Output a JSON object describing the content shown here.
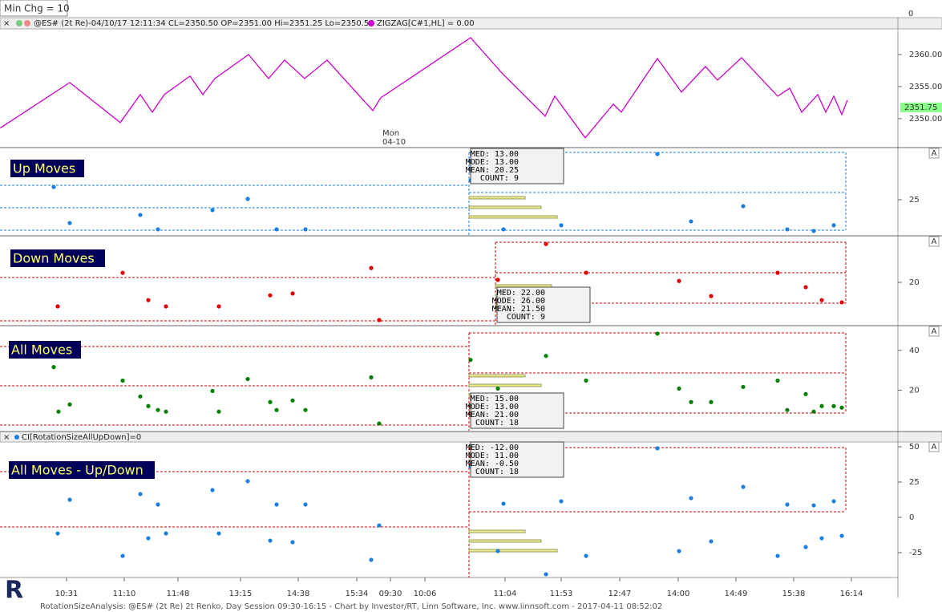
{
  "toolbar": {
    "min_chg": "Min Chg = 10",
    "top_tick": 0
  },
  "price_pane": {
    "header": "@ES# (2t Re)-04/10/17 12:11:34 CL=2350.50 OP=2351.00 Hi=2351.25 Lo=2350.50",
    "indicator": "ZIGZAG[C#1,HL] = 0.00",
    "day_label": "Mon",
    "date_label": "04-10",
    "last_price": 2351.75,
    "ylim": [
      2345.6,
      2363.75
    ],
    "yticks": [
      {
        "value": 2350,
        "label": "2350.00"
      },
      {
        "value": 2355,
        "label": "2355.00"
      },
      {
        "value": 2360,
        "label": "2360.00"
      }
    ],
    "zigzag": {
      "color": "#cc00cc",
      "x": [
        0,
        8.7,
        15,
        17.5,
        19,
        20.5,
        23.7,
        25.3,
        26.8,
        31,
        33.5,
        35.5,
        38,
        40.8,
        46.5,
        47.5,
        58.7,
        62.5,
        68,
        69.2,
        73,
        76.5,
        77.5,
        82,
        85,
        88,
        89.5,
        92.5,
        97,
        98.5,
        100,
        102,
        103,
        104,
        105,
        105.7
      ],
      "y": [
        2348.5,
        2355.63,
        2349.38,
        2353.75,
        2351,
        2353.75,
        2356.63,
        2353.75,
        2356.25,
        2360,
        2356.25,
        2359.13,
        2356.25,
        2359.13,
        2351.25,
        2353.25,
        2362.63,
        2357.25,
        2350.38,
        2353.5,
        2347,
        2352.25,
        2351,
        2359.38,
        2354.13,
        2358.13,
        2356,
        2359.5,
        2353.5,
        2354.75,
        2351,
        2353.75,
        2351,
        2353.5,
        2350.63,
        2352.88
      ]
    }
  },
  "panes": [
    {
      "title": "Up Moves",
      "color": "#1a7fe0",
      "ylim": [
        7.6,
        50.3
      ],
      "yticks": [
        25
      ],
      "x": [
        6.7,
        8.7,
        17.5,
        19.7,
        26.5,
        30.9,
        34.5,
        38.1,
        58.7,
        62.8,
        70,
        82,
        86.2,
        92.7,
        98.2,
        101.5,
        104
      ],
      "y": [
        31.3,
        13.5,
        17.5,
        10.4,
        19.9,
        25.4,
        10.4,
        10.4,
        34.5,
        10.4,
        12.4,
        47.5,
        14.3,
        21.8,
        10.4,
        9.6,
        12.4
      ],
      "stats": [
        "MED: 13.00",
        "MODE: 13.00",
        "MEAN: 20.25",
        "COUNT: 9"
      ]
    },
    {
      "title": "Down Moves",
      "color": "#e00000",
      "ylim": [
        8.5,
        32.4
      ],
      "yticks": [
        20
      ],
      "x": [
        7.2,
        15.3,
        18.5,
        20.7,
        27.3,
        33.7,
        36.5,
        46.3,
        47.3,
        62.1,
        68.1,
        73.1,
        84.7,
        88.7,
        97,
        100.5,
        102.5,
        105
      ],
      "y": [
        13.5,
        22.6,
        15.2,
        13.5,
        13.5,
        16.5,
        17,
        23.9,
        9.8,
        20.7,
        30.4,
        22.6,
        20.4,
        16.3,
        22.6,
        18.7,
        15.2,
        14.6
      ],
      "stats": [
        "MED: 22.00",
        "MODE: 26.00",
        "MEAN: 21.50",
        "COUNT: 9"
      ]
    },
    {
      "title": "All Moves",
      "color": "#008000",
      "ylim": [
        -0.4,
        52
      ],
      "yticks": [
        40,
        20
      ],
      "x": [
        6.7,
        7.3,
        8.7,
        15.3,
        17.5,
        18.5,
        19.7,
        20.7,
        26.5,
        27.3,
        30.9,
        33.7,
        34.5,
        36.5,
        38.1,
        46.3,
        47.3,
        58.7,
        62.1,
        62.8,
        68.1,
        73.1,
        82,
        84.7,
        86.2,
        88.7,
        92.7,
        97,
        98.2,
        100.5,
        101.5,
        102.5,
        104,
        105
      ],
      "y": [
        31.6,
        9.2,
        12.8,
        24.8,
        16.8,
        12,
        10,
        9.2,
        19.6,
        9.2,
        25.6,
        14,
        10,
        14.8,
        10,
        26.4,
        3.2,
        35.2,
        20.8,
        10,
        37.2,
        24.8,
        48.4,
        20.8,
        14,
        14,
        21.6,
        24.8,
        10,
        18,
        9.2,
        12,
        12,
        11.2
      ],
      "stats": [
        "MED: 15.00",
        "MODE: 13.00",
        "MEAN: 21.00",
        "COUNT: 18"
      ]
    },
    {
      "title": "All Moves - Up/Down",
      "header": "CI[RotationSizeAllUpDown]=0",
      "color": "#1a7fe0",
      "ylim": [
        -42.6,
        53.4
      ],
      "yticks": [
        50,
        25,
        0,
        -25
      ],
      "x": [
        7.2,
        8.7,
        15.3,
        17.5,
        18.5,
        19.7,
        20.7,
        26.5,
        27.3,
        30.9,
        33.7,
        34.5,
        36.5,
        38.1,
        46.3,
        47.3,
        58.7,
        62.1,
        62.8,
        68.1,
        70,
        73.1,
        82,
        84.7,
        86.2,
        88.7,
        92.7,
        97,
        98.2,
        100.5,
        101.5,
        102.5,
        104,
        105
      ],
      "y": [
        -11.4,
        12.5,
        -27.3,
        16.5,
        -14.8,
        9.1,
        -11.4,
        19.3,
        -11.4,
        25.6,
        -16.5,
        9.1,
        -17.6,
        9.1,
        -30.1,
        -5.7,
        35.8,
        -23.9,
        9.7,
        -40.3,
        11.4,
        -27.3,
        48.9,
        -23.9,
        13.6,
        -17,
        21.6,
        -27.3,
        9.1,
        -21,
        8.5,
        -14.8,
        11.4,
        -13.1
      ],
      "stats": [
        "MED: -12.00",
        "MODE: 11.00",
        "MEAN: -0.50",
        "COUNT: 18"
      ]
    }
  ],
  "x_axis": {
    "xlim": [
      0,
      112
    ],
    "ticks": [
      {
        "value": 8.3,
        "label": "10:31"
      },
      {
        "value": 15.5,
        "label": "11:10"
      },
      {
        "value": 22.2,
        "label": "11:48"
      },
      {
        "value": 30,
        "label": "13:15"
      },
      {
        "value": 37.2,
        "label": "14:38"
      },
      {
        "value": 44.5,
        "label": "15:34"
      },
      {
        "value": 48.7,
        "label": "09:30"
      },
      {
        "value": 53,
        "label": "10:06"
      },
      {
        "value": 63,
        "label": "11:04"
      },
      {
        "value": 70,
        "label": "11:53"
      },
      {
        "value": 77.3,
        "label": "12:47"
      },
      {
        "value": 84.6,
        "label": "14:00"
      },
      {
        "value": 91.8,
        "label": "14:49"
      },
      {
        "value": 99,
        "label": "15:38"
      },
      {
        "value": 106.2,
        "label": "16:14"
      }
    ]
  },
  "footer": "RotationSizeAnalysis: @ES# (2t Re) 2t Renko, Day Session 09:30-16:15 - Chart by Investor/RT, Linn Software, Inc. www.linnsoft.com - 2017-04-11 08:52:02"
}
